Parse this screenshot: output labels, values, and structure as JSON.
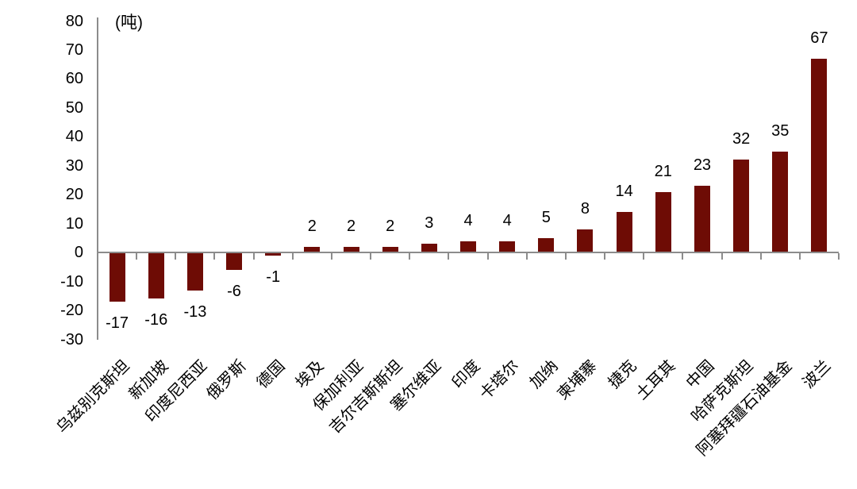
{
  "chart_data": {
    "type": "bar",
    "title": "",
    "unit_label": "(吨)",
    "xlabel": "",
    "ylabel": "",
    "categories": [
      "乌兹别克斯坦",
      "新加坡",
      "印度尼西亚",
      "俄罗斯",
      "德国",
      "埃及",
      "保加利亚",
      "吉尔吉斯斯坦",
      "塞尔维亚",
      "印度",
      "卡塔尔",
      "加纳",
      "柬埔寨",
      "捷克",
      "土耳其",
      "中国",
      "哈萨克斯坦",
      "阿塞拜疆石油基金",
      "波兰"
    ],
    "values": [
      -17,
      -16,
      -13,
      -6,
      -1,
      2,
      2,
      2,
      3,
      4,
      4,
      5,
      8,
      14,
      21,
      23,
      32,
      35,
      67
    ],
    "ylim": [
      -30,
      80
    ],
    "yticks": [
      80,
      70,
      60,
      50,
      40,
      30,
      20,
      10,
      0,
      -10,
      -20,
      -30
    ],
    "grid": false,
    "legend": false,
    "data_labels": true,
    "colors": {
      "bar": "#6E0C05",
      "axis": "#8C8C8C",
      "text": "#000000",
      "background": "#FFFFFF"
    }
  }
}
